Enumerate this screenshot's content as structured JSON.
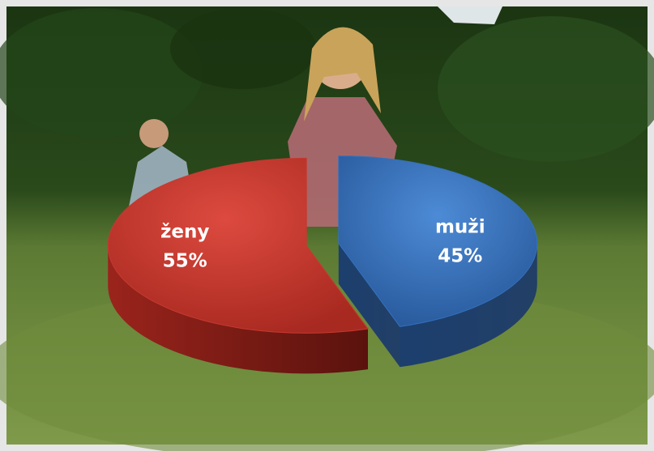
{
  "chart_data": {
    "type": "pie",
    "three_d": true,
    "categories": [
      "ženy",
      "muži"
    ],
    "values": [
      55,
      45
    ],
    "value_labels": [
      "55%",
      "45%"
    ],
    "colors": [
      "#c53a30",
      "#3371bd"
    ]
  }
}
